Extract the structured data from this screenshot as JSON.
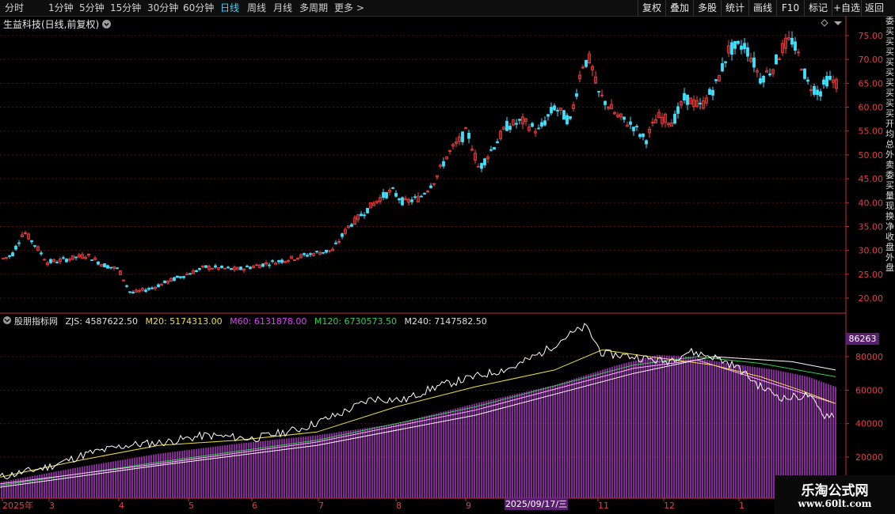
{
  "toolbar": {
    "tabs": [
      "分时",
      "1分钟",
      "5分钟",
      "15分钟",
      "30分钟",
      "60分钟",
      "日线",
      "周线",
      "月线",
      "多周期",
      "更多 >"
    ],
    "active_tab": "日线",
    "right_buttons": [
      "复权",
      "叠加",
      "多股",
      "统计",
      "画线",
      "F10",
      "标记",
      "+自选",
      "返回"
    ]
  },
  "main_chart": {
    "title": "生益科技(日线,前复权)",
    "price_ticks": [
      "75.00",
      "70.00",
      "65.00",
      "60.00",
      "55.00",
      "50.00",
      "45.00",
      "40.00",
      "35.00",
      "30.00",
      "25.00",
      "20.00"
    ]
  },
  "indicator": {
    "name": "股朋指标网",
    "zjs": "ZJS: 4587622.50",
    "m20": "M20: 5174313.00",
    "m60": "M60: 6131878.00",
    "m120": "M120: 6730573.50",
    "m240": "M240: 7147582.50",
    "axis_box": "86263",
    "ticks": [
      "80000",
      "60000",
      "40000",
      "20000"
    ]
  },
  "time_axis": {
    "labels": [
      "2025年",
      "3",
      "4",
      "5",
      "6",
      "7",
      "8",
      "9",
      "2025/09/17/三",
      "11",
      "12",
      "1"
    ],
    "selected_date": "2025/09/17/三"
  },
  "right_strip": {
    "chars": "委买买买买买买买买买开均总外卖委买量现换净收盘外盘"
  },
  "watermark": {
    "title": "乐淘公式网",
    "url": "www.60lt.com"
  },
  "colors": {
    "up": "#ff4040",
    "down": "#40e0ff",
    "magenta": "#e040ff",
    "white_line": "#ffffff",
    "yellow_line": "#f0e040",
    "green_line": "#30d050",
    "pink_line": "#ffb6ff",
    "grid": "#5a1010",
    "axis": "#c03030"
  },
  "icons": [
    "dropdown-circle-icon",
    "diamond-icon",
    "menu-icon",
    "collapse-icon"
  ]
}
